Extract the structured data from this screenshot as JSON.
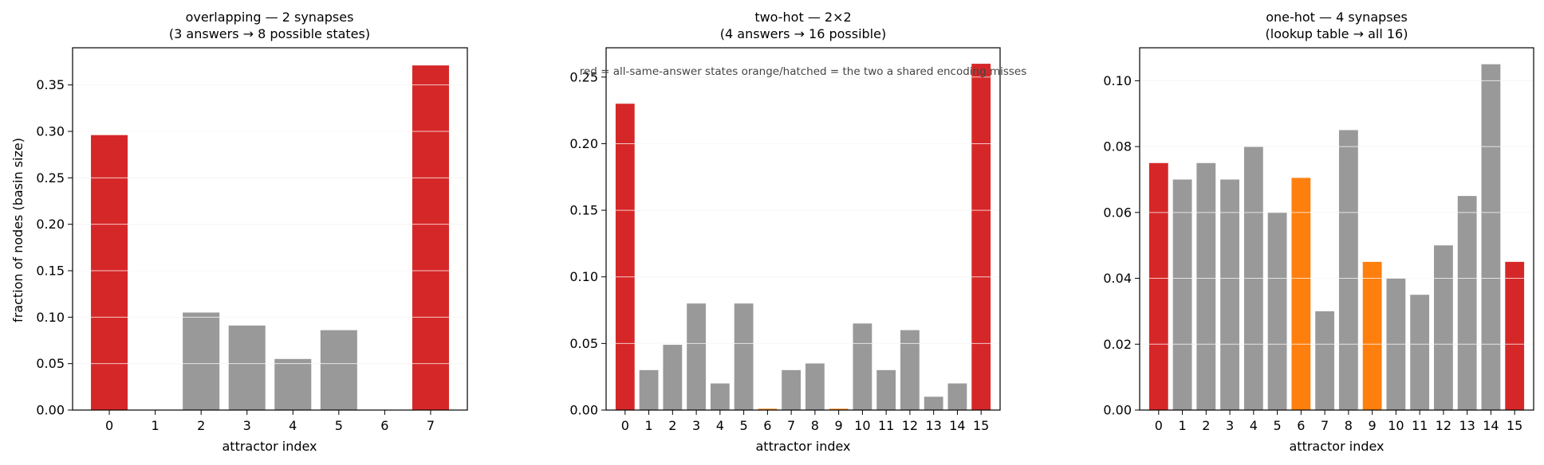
{
  "colors": {
    "all_same_answer": "#d62728",
    "shared_encoding_miss": "#ff7f0e",
    "other": "#999999",
    "grid": "#e6e6e6",
    "axis": "#000000"
  },
  "annotation": "red = all-same-answer states   orange/hatched = the two a shared encoding misses",
  "chart_data": [
    {
      "type": "bar",
      "title": "overlapping — 2 synapses",
      "subtitle": "(3 answers → 8 possible states)",
      "xlabel": "attractor index",
      "ylabel": "fraction of nodes (basin size)",
      "categories": [
        "0",
        "1",
        "2",
        "3",
        "4",
        "5",
        "6",
        "7"
      ],
      "values": [
        0.296,
        0.0,
        0.105,
        0.091,
        0.055,
        0.086,
        0.0,
        0.371
      ],
      "bar_colors": [
        "red",
        "gray",
        "gray",
        "gray",
        "gray",
        "gray",
        "gray",
        "red"
      ],
      "ylim": [
        0,
        0.39
      ],
      "yticks": [
        0.0,
        0.05,
        0.1,
        0.15,
        0.2,
        0.25,
        0.3,
        0.35
      ],
      "ytick_labels": [
        "0.00",
        "0.05",
        "0.10",
        "0.15",
        "0.20",
        "0.25",
        "0.30",
        "0.35"
      ],
      "grid": "y"
    },
    {
      "type": "bar",
      "title": "two-hot — 2×2",
      "subtitle": "(4 answers → 16 possible)",
      "xlabel": "attractor index",
      "ylabel": "",
      "categories": [
        "0",
        "1",
        "2",
        "3",
        "4",
        "5",
        "6",
        "7",
        "8",
        "9",
        "10",
        "11",
        "12",
        "13",
        "14",
        "15"
      ],
      "values": [
        0.23,
        0.03,
        0.049,
        0.08,
        0.02,
        0.08,
        0.001,
        0.03,
        0.035,
        0.001,
        0.065,
        0.03,
        0.06,
        0.01,
        0.02,
        0.26
      ],
      "bar_colors": [
        "red",
        "gray",
        "gray",
        "gray",
        "gray",
        "gray",
        "orange",
        "gray",
        "gray",
        "orange",
        "gray",
        "gray",
        "gray",
        "gray",
        "gray",
        "red"
      ],
      "ylim": [
        0,
        0.272
      ],
      "yticks": [
        0.0,
        0.05,
        0.1,
        0.15,
        0.2,
        0.25
      ],
      "ytick_labels": [
        "0.00",
        "0.05",
        "0.10",
        "0.15",
        "0.20",
        "0.25"
      ],
      "grid": "y"
    },
    {
      "type": "bar",
      "title": "one-hot — 4 synapses",
      "subtitle": "(lookup table → all 16)",
      "xlabel": "attractor index",
      "ylabel": "",
      "categories": [
        "0",
        "1",
        "2",
        "3",
        "4",
        "5",
        "6",
        "7",
        "8",
        "9",
        "10",
        "11",
        "12",
        "13",
        "14",
        "15"
      ],
      "values": [
        0.075,
        0.07,
        0.075,
        0.07,
        0.08,
        0.06,
        0.0705,
        0.03,
        0.085,
        0.045,
        0.04,
        0.035,
        0.05,
        0.065,
        0.105,
        0.045
      ],
      "bar_colors": [
        "red",
        "gray",
        "gray",
        "gray",
        "gray",
        "gray",
        "orange",
        "gray",
        "gray",
        "orange",
        "gray",
        "gray",
        "gray",
        "gray",
        "gray",
        "red"
      ],
      "ylim": [
        0,
        0.11
      ],
      "yticks": [
        0.0,
        0.02,
        0.04,
        0.06,
        0.08,
        0.1
      ],
      "ytick_labels": [
        "0.00",
        "0.02",
        "0.04",
        "0.06",
        "0.08",
        "0.10"
      ],
      "grid": "y"
    }
  ]
}
